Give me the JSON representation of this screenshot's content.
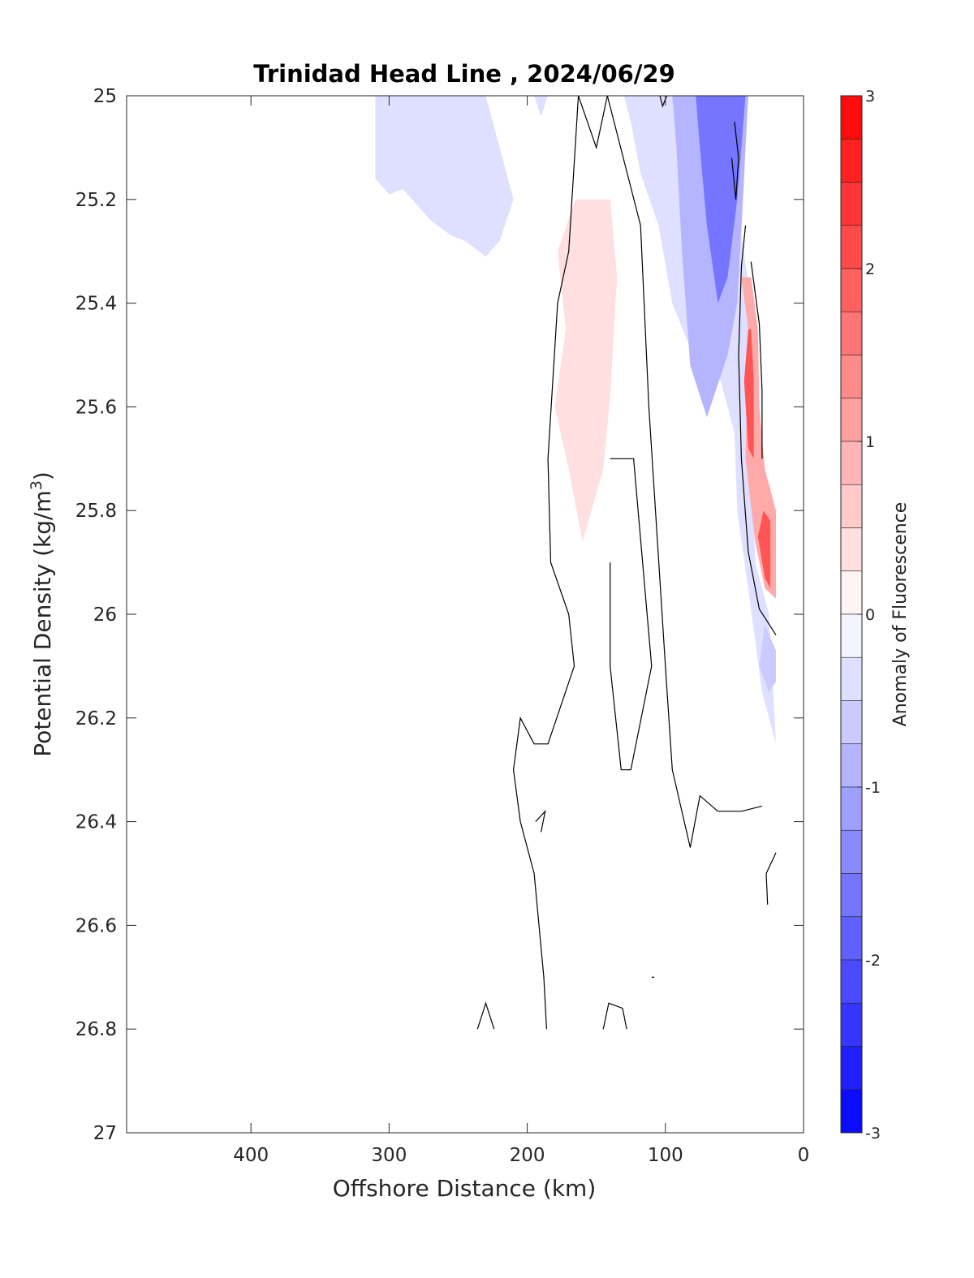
{
  "chart_data": {
    "type": "heatmap",
    "title": "Trinidad Head Line , 2024/06/29",
    "xlabel": "Offshore Distance (km)",
    "ylabel": "Potential Density (kg/m",
    "ylabel_sup": "3",
    "ylabel_suffix": ")",
    "xlim": [
      490,
      0
    ],
    "ylim": [
      25,
      27
    ],
    "x_reversed": true,
    "y_reversed": true,
    "xticks": [
      400,
      300,
      200,
      100,
      0
    ],
    "yticks": [
      25,
      25.2,
      25.4,
      25.6,
      25.8,
      26,
      26.2,
      26.4,
      26.6,
      26.8,
      27
    ],
    "ytick_labels": [
      "25",
      "25.2",
      "25.4",
      "25.6",
      "25.8",
      "26",
      "26.2",
      "26.4",
      "26.6",
      "26.8",
      "27"
    ],
    "grid": false,
    "colorbar": {
      "label": "Anomaly of Fluorescence",
      "range": [
        -3,
        3
      ],
      "step": 0.25,
      "ticks": [
        3,
        2,
        1,
        0,
        -1,
        -2,
        -3
      ],
      "tick_labels": [
        "3",
        "2",
        "1",
        "0",
        "-1",
        "-2",
        "-3"
      ],
      "low_color": "#0000ff",
      "mid_color": "#ffffff",
      "high_color": "#ff0000",
      "position": "right"
    },
    "anomaly_regions": [
      {
        "name": "offshore-weak-negative",
        "value": -0.375,
        "points": [
          [
            310,
            25.0
          ],
          [
            310,
            25.16
          ],
          [
            300,
            25.19
          ],
          [
            290,
            25.18
          ],
          [
            270,
            25.24
          ],
          [
            255,
            25.27
          ],
          [
            245,
            25.28
          ],
          [
            230,
            25.31
          ],
          [
            220,
            25.28
          ],
          [
            210,
            25.2
          ],
          [
            220,
            25.1
          ],
          [
            230,
            25.0
          ]
        ]
      },
      {
        "name": "offshore-weak-negative-small",
        "value": -0.375,
        "points": [
          [
            195,
            25.0
          ],
          [
            190,
            25.04
          ],
          [
            185,
            25.0
          ]
        ]
      },
      {
        "name": "mid-weak-positive",
        "value": 0.375,
        "points": [
          [
            160,
            25.86
          ],
          [
            170,
            25.72
          ],
          [
            180,
            25.6
          ],
          [
            172,
            25.45
          ],
          [
            178,
            25.3
          ],
          [
            165,
            25.2
          ],
          [
            140,
            25.2
          ],
          [
            135,
            25.35
          ],
          [
            140,
            25.58
          ],
          [
            145,
            25.72
          ]
        ]
      },
      {
        "name": "inshore-negative-band",
        "value": -0.375,
        "points": [
          [
            130,
            25.0
          ],
          [
            40,
            25.0
          ],
          [
            45,
            25.27
          ],
          [
            40,
            25.36
          ],
          [
            40,
            25.5
          ],
          [
            35,
            25.9
          ],
          [
            25,
            26.0
          ],
          [
            20,
            26.25
          ],
          [
            30,
            26.15
          ],
          [
            40,
            25.95
          ],
          [
            48,
            25.8
          ],
          [
            50,
            25.65
          ],
          [
            60,
            25.55
          ],
          [
            80,
            25.5
          ],
          [
            95,
            25.4
          ],
          [
            105,
            25.25
          ],
          [
            118,
            25.15
          ],
          [
            125,
            25.05
          ]
        ]
      },
      {
        "name": "inshore-negative-core",
        "value": -0.875,
        "points": [
          [
            95,
            25.0
          ],
          [
            40,
            25.0
          ],
          [
            45,
            25.25
          ],
          [
            48,
            25.4
          ],
          [
            55,
            25.5
          ],
          [
            70,
            25.62
          ],
          [
            82,
            25.52
          ],
          [
            88,
            25.3
          ],
          [
            92,
            25.1
          ]
        ]
      },
      {
        "name": "inshore-negative-peak",
        "value": -1.625,
        "points": [
          [
            78,
            25.0
          ],
          [
            42,
            25.0
          ],
          [
            48,
            25.2
          ],
          [
            55,
            25.35
          ],
          [
            62,
            25.4
          ],
          [
            70,
            25.25
          ],
          [
            75,
            25.1
          ]
        ]
      },
      {
        "name": "deep-negative-patch",
        "value": -0.625,
        "points": [
          [
            20,
            26.07
          ],
          [
            28,
            26.02
          ],
          [
            32,
            26.1
          ],
          [
            25,
            26.15
          ],
          [
            20,
            26.13
          ]
        ]
      },
      {
        "name": "inshore-positive-band",
        "value": 1.0,
        "points": [
          [
            45,
            25.35
          ],
          [
            40,
            25.45
          ],
          [
            42,
            25.7
          ],
          [
            35,
            25.86
          ],
          [
            28,
            25.95
          ],
          [
            20,
            25.97
          ],
          [
            20,
            25.8
          ],
          [
            28,
            25.72
          ],
          [
            32,
            25.6
          ],
          [
            33,
            25.45
          ],
          [
            38,
            25.35
          ]
        ]
      },
      {
        "name": "inshore-positive-core",
        "value": 2.0,
        "points": [
          [
            40,
            25.45
          ],
          [
            43,
            25.55
          ],
          [
            40,
            25.68
          ],
          [
            36,
            25.7
          ],
          [
            36,
            25.55
          ],
          [
            38,
            25.45
          ]
        ]
      },
      {
        "name": "deep-positive-core",
        "value": 2.0,
        "points": [
          [
            33,
            25.85
          ],
          [
            28,
            25.93
          ],
          [
            24,
            25.95
          ],
          [
            24,
            25.82
          ],
          [
            29,
            25.8
          ]
        ]
      }
    ],
    "zero_contours": [
      {
        "name": "contour-offshore-boundary",
        "points": [
          [
            163,
            25.0
          ],
          [
            170,
            25.3
          ],
          [
            178,
            25.4
          ],
          [
            185,
            25.7
          ],
          [
            183,
            25.9
          ],
          [
            170,
            26.0
          ],
          [
            166,
            26.1
          ],
          [
            185,
            26.25
          ],
          [
            195,
            26.25
          ],
          [
            205,
            26.2
          ],
          [
            210,
            26.3
          ],
          [
            205,
            26.4
          ],
          [
            195,
            26.5
          ],
          [
            188,
            26.7
          ],
          [
            186,
            26.8
          ]
        ]
      },
      {
        "name": "contour-mid-left",
        "points": [
          [
            163,
            25.0
          ],
          [
            150,
            25.1
          ],
          [
            142,
            25.0
          ]
        ]
      },
      {
        "name": "contour-mid-right",
        "points": [
          [
            142,
            25.0
          ],
          [
            118,
            25.25
          ],
          [
            112,
            25.6
          ],
          [
            100,
            26.1
          ],
          [
            95,
            26.3
          ],
          [
            82,
            26.45
          ],
          [
            75,
            26.35
          ],
          [
            62,
            26.38
          ],
          [
            45,
            26.38
          ],
          [
            30,
            26.37
          ]
        ]
      },
      {
        "name": "contour-inner-loop",
        "points": [
          [
            140,
            25.7
          ],
          [
            123,
            25.7
          ],
          [
            110,
            26.1
          ],
          [
            125,
            26.3
          ],
          [
            132,
            26.3
          ],
          [
            140,
            26.1
          ],
          [
            140,
            25.9
          ]
        ]
      },
      {
        "name": "contour-inshore-a",
        "points": [
          [
            42,
            25.25
          ],
          [
            45,
            25.33
          ],
          [
            47,
            25.5
          ],
          [
            45,
            25.7
          ],
          [
            40,
            25.88
          ],
          [
            32,
            25.99
          ],
          [
            20,
            26.04
          ]
        ]
      },
      {
        "name": "contour-inshore-b",
        "points": [
          [
            38,
            25.32
          ],
          [
            32,
            25.44
          ],
          [
            30,
            25.57
          ],
          [
            30,
            25.7
          ]
        ]
      },
      {
        "name": "contour-surface-lens",
        "points": [
          [
            50,
            25.05
          ],
          [
            47,
            25.12
          ],
          [
            49,
            25.2
          ],
          [
            52,
            25.12
          ]
        ]
      },
      {
        "name": "contour-surface-notch",
        "points": [
          [
            104,
            25.0
          ],
          [
            102,
            25.02
          ],
          [
            99,
            25.0
          ]
        ]
      },
      {
        "name": "contour-deep-inshore",
        "points": [
          [
            20,
            26.46
          ],
          [
            27,
            26.5
          ],
          [
            26,
            26.56
          ]
        ]
      },
      {
        "name": "contour-deep-tick-a",
        "points": [
          [
            236,
            26.8
          ],
          [
            230,
            26.75
          ],
          [
            224,
            26.8
          ]
        ]
      },
      {
        "name": "contour-deep-tick-b",
        "points": [
          [
            145,
            26.8
          ],
          [
            141,
            26.75
          ],
          [
            131,
            26.76
          ],
          [
            128,
            26.8
          ]
        ]
      },
      {
        "name": "contour-small-loop",
        "points": [
          [
            194,
            26.4
          ],
          [
            187,
            26.38
          ],
          [
            190,
            26.42
          ]
        ]
      },
      {
        "name": "contour-tiny-loop",
        "points": [
          [
            110,
            26.7
          ],
          [
            108,
            26.7
          ]
        ]
      }
    ]
  }
}
